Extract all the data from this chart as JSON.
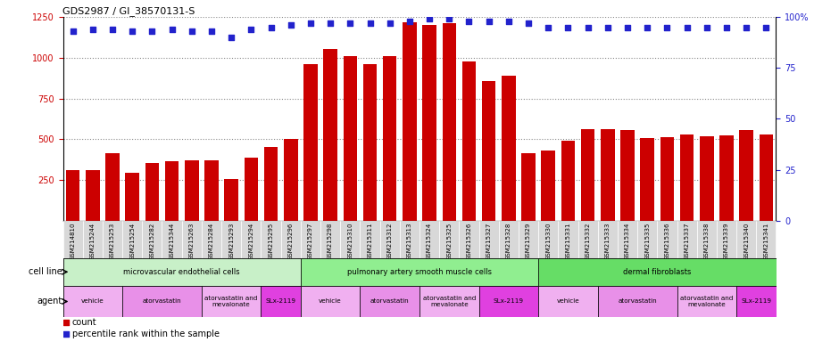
{
  "title": "GDS2987 / GI_38570131-S",
  "samples": [
    "GSM214810",
    "GSM215244",
    "GSM215253",
    "GSM215254",
    "GSM215282",
    "GSM215344",
    "GSM215263",
    "GSM215284",
    "GSM215293",
    "GSM215294",
    "GSM215295",
    "GSM215296",
    "GSM215297",
    "GSM215298",
    "GSM215310",
    "GSM215311",
    "GSM215312",
    "GSM215313",
    "GSM215324",
    "GSM215325",
    "GSM215326",
    "GSM215327",
    "GSM215328",
    "GSM215329",
    "GSM215330",
    "GSM215331",
    "GSM215332",
    "GSM215333",
    "GSM215334",
    "GSM215335",
    "GSM215336",
    "GSM215337",
    "GSM215338",
    "GSM215339",
    "GSM215340",
    "GSM215341"
  ],
  "counts": [
    310,
    310,
    415,
    295,
    355,
    365,
    370,
    370,
    255,
    385,
    455,
    500,
    960,
    1055,
    1010,
    960,
    1010,
    1220,
    1200,
    1215,
    975,
    855,
    890,
    415,
    430,
    490,
    560,
    560,
    555,
    505,
    510,
    530,
    520,
    525,
    555,
    530
  ],
  "percentile_ranks": [
    93,
    94,
    94,
    93,
    93,
    94,
    93,
    93,
    90,
    94,
    95,
    96,
    97,
    97,
    97,
    97,
    97,
    98,
    99,
    99,
    98,
    98,
    98,
    97,
    95,
    95,
    95,
    95,
    95,
    95,
    95,
    95,
    95,
    95,
    95,
    95
  ],
  "cell_line_groups": [
    {
      "label": "microvascular endothelial cells",
      "start": 0,
      "end": 11,
      "color": "#c8f0c8"
    },
    {
      "label": "pulmonary artery smooth muscle cells",
      "start": 12,
      "end": 23,
      "color": "#90ee90"
    },
    {
      "label": "dermal fibroblasts",
      "start": 24,
      "end": 35,
      "color": "#66dd66"
    }
  ],
  "agent_groups": [
    {
      "label": "vehicle",
      "start": 0,
      "end": 2,
      "color": "#f0b0f0"
    },
    {
      "label": "atorvastatin",
      "start": 3,
      "end": 6,
      "color": "#e890e8"
    },
    {
      "label": "atorvastatin and\nmevalonate",
      "start": 7,
      "end": 9,
      "color": "#f0b0f0"
    },
    {
      "label": "SLx-2119",
      "start": 10,
      "end": 11,
      "color": "#e040e0"
    },
    {
      "label": "vehicle",
      "start": 12,
      "end": 14,
      "color": "#f0b0f0"
    },
    {
      "label": "atorvastatin",
      "start": 15,
      "end": 17,
      "color": "#e890e8"
    },
    {
      "label": "atorvastatin and\nmevalonate",
      "start": 18,
      "end": 20,
      "color": "#f0b0f0"
    },
    {
      "label": "SLx-2119",
      "start": 21,
      "end": 23,
      "color": "#e040e0"
    },
    {
      "label": "vehicle",
      "start": 24,
      "end": 26,
      "color": "#f0b0f0"
    },
    {
      "label": "atorvastatin",
      "start": 27,
      "end": 30,
      "color": "#e890e8"
    },
    {
      "label": "atorvastatin and\nmevalonate",
      "start": 31,
      "end": 33,
      "color": "#f0b0f0"
    },
    {
      "label": "SLx-2119",
      "start": 34,
      "end": 35,
      "color": "#e040e0"
    }
  ],
  "bar_color": "#cc0000",
  "dot_color": "#2222cc",
  "ylim_left": [
    0,
    1250
  ],
  "ylim_right": [
    0,
    100
  ],
  "yticks_left": [
    250,
    500,
    750,
    1000,
    1250
  ],
  "yticks_right": [
    0,
    25,
    50,
    75,
    100
  ],
  "background_color": "#ffffff",
  "grid_color": "#888888",
  "tick_bg_color": "#d8d8d8"
}
